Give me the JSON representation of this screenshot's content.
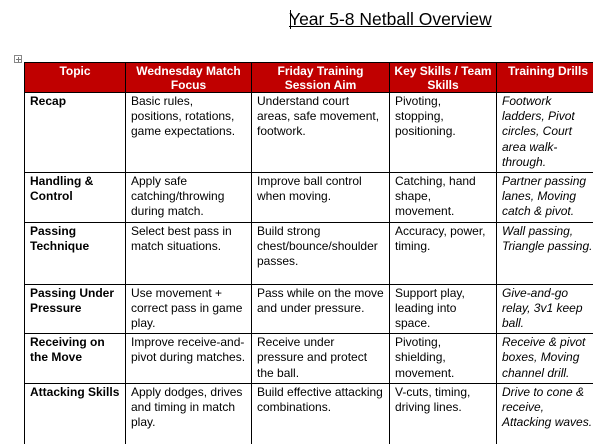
{
  "document": {
    "title": "Year 5-8 Netball Overview"
  },
  "table": {
    "headers": [
      "Topic",
      "Wednesday Match Focus",
      "Friday Training Session Aim",
      "Key Skills / Team Skills",
      "Training Drills"
    ],
    "rows": [
      {
        "topic": "Recap",
        "match_focus": "Basic rules, positions, rotations, game expectations.",
        "session_aim": "Understand court areas, safe movement, footwork.",
        "key_skills": "Pivoting, stopping, positioning.",
        "drills": "Footwork ladders, Pivot circles, Court area walk-through."
      },
      {
        "topic": "Handling & Control",
        "match_focus": "Apply safe catching/throwing during match.",
        "session_aim": "Improve ball control when moving.",
        "key_skills": "Catching, hand shape, movement.",
        "drills": "Partner passing lanes, Moving catch & pivot."
      },
      {
        "topic": "Passing Technique",
        "match_focus": "Select best pass in match situations.",
        "session_aim": "Build strong chest/bounce/shoulder passes.",
        "key_skills": "Accuracy, power, timing.",
        "drills": "Wall passing, Triangle passing."
      },
      {
        "topic": "Passing Under Pressure",
        "match_focus": "Use movement + correct pass in game play.",
        "session_aim": "Pass while on the move and under pressure.",
        "key_skills": "Support play, leading into space.",
        "drills": "Give-and-go relay, 3v1 keep ball."
      },
      {
        "topic": "Receiving on the Move",
        "match_focus": "Improve receive-and-pivot during matches.",
        "session_aim": "Receive under pressure and protect the ball.",
        "key_skills": "Pivoting, shielding, movement.",
        "drills": "Receive & pivot boxes, Moving channel drill."
      },
      {
        "topic": "Attacking Skills",
        "match_focus": "Apply dodges, drives and timing in match play.",
        "session_aim": "Build effective attacking combinations.",
        "key_skills": "V-cuts, timing, driving lines.",
        "drills": "Drive to cone & receive, Attacking waves."
      }
    ]
  },
  "colors": {
    "header_background": "#c00000",
    "header_text": "#ffffff"
  },
  "icons": {
    "table_handle": "move-handle-icon"
  }
}
